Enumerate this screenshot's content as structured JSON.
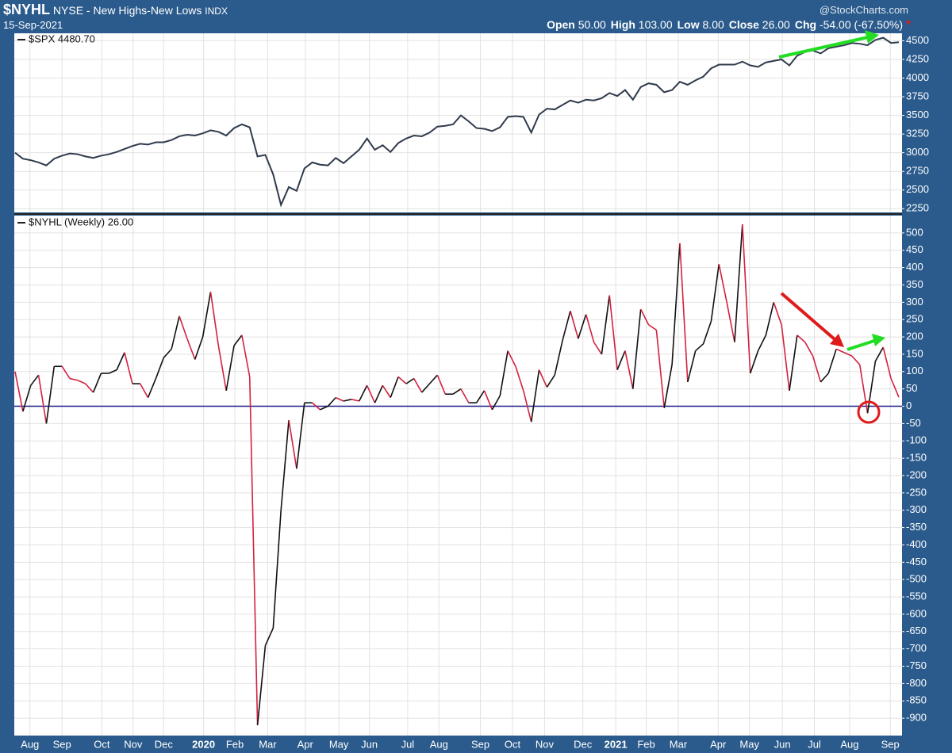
{
  "header": {
    "symbol": "$NYHL",
    "name": "NYSE - New Highs-New Lows",
    "exchange": "INDX",
    "date": "15-Sep-2021",
    "source": "@StockCharts.com",
    "quote": [
      {
        "label": "Open",
        "value": "50.00"
      },
      {
        "label": "High",
        "value": "103.00"
      },
      {
        "label": "Low",
        "value": "8.00"
      },
      {
        "label": "Close",
        "value": "26.00"
      },
      {
        "label": "Chg",
        "value": "-54.00 (-67.50%)"
      }
    ]
  },
  "chart_data": [
    {
      "type": "line",
      "xlim": [
        0,
        113
      ],
      "ylim": [
        2200,
        4600
      ],
      "yticks": [
        2250,
        2500,
        2750,
        3000,
        3250,
        3500,
        3750,
        4000,
        4250,
        4500
      ],
      "grid": true,
      "series": [
        {
          "name": "$SPX 4480.70",
          "color": "#2f3b4c",
          "values": [
            3000,
            2920,
            2900,
            2870,
            2830,
            2920,
            2960,
            2990,
            2980,
            2950,
            2930,
            2960,
            2980,
            3010,
            3050,
            3090,
            3120,
            3110,
            3140,
            3140,
            3170,
            3220,
            3240,
            3230,
            3260,
            3300,
            3280,
            3230,
            3330,
            3380,
            3340,
            2950,
            2970,
            2710,
            2300,
            2540,
            2490,
            2790,
            2870,
            2840,
            2830,
            2930,
            2860,
            2950,
            3040,
            3190,
            3040,
            3100,
            3010,
            3130,
            3190,
            3230,
            3220,
            3270,
            3350,
            3360,
            3380,
            3500,
            3420,
            3330,
            3320,
            3290,
            3340,
            3480,
            3490,
            3480,
            3270,
            3510,
            3590,
            3580,
            3640,
            3700,
            3670,
            3710,
            3700,
            3730,
            3800,
            3760,
            3840,
            3710,
            3880,
            3930,
            3910,
            3810,
            3840,
            3950,
            3910,
            3970,
            4020,
            4130,
            4180,
            4180,
            4180,
            4220,
            4170,
            4150,
            4210,
            4230,
            4250,
            4170,
            4300,
            4350,
            4370,
            4330,
            4400,
            4420,
            4440,
            4470,
            4460,
            4440,
            4510,
            4540,
            4470,
            4480.7
          ]
        }
      ]
    },
    {
      "type": "updown-line",
      "xlim": [
        0,
        113
      ],
      "ylim": [
        -950,
        550
      ],
      "yticks": [
        -900,
        -850,
        -800,
        -750,
        -700,
        -650,
        -600,
        -550,
        -500,
        -450,
        -400,
        -350,
        -300,
        -250,
        -200,
        -150,
        -100,
        -50,
        0,
        50,
        100,
        150,
        200,
        250,
        300,
        350,
        400,
        450,
        500
      ],
      "grid": true,
      "zero_line_color": "#1c1c8a",
      "xticks": [
        {
          "value": 1.9,
          "label": "Aug"
        },
        {
          "value": 6,
          "label": "Sep"
        },
        {
          "value": 11.1,
          "label": "Oct"
        },
        {
          "value": 15.1,
          "label": "Nov"
        },
        {
          "value": 19,
          "label": "Dec"
        },
        {
          "value": 24.1,
          "label": "2020"
        },
        {
          "value": 28.1,
          "label": "Feb"
        },
        {
          "value": 32.3,
          "label": "Mar"
        },
        {
          "value": 37.1,
          "label": "Apr"
        },
        {
          "value": 41.4,
          "label": "May"
        },
        {
          "value": 45.3,
          "label": "Jun"
        },
        {
          "value": 50.2,
          "label": "Jul"
        },
        {
          "value": 54.2,
          "label": "Aug"
        },
        {
          "value": 59.5,
          "label": "Sep"
        },
        {
          "value": 63.6,
          "label": "Oct"
        },
        {
          "value": 67.7,
          "label": "Nov"
        },
        {
          "value": 72.6,
          "label": "Dec"
        },
        {
          "value": 76.8,
          "label": "2021"
        },
        {
          "value": 80.7,
          "label": "Feb"
        },
        {
          "value": 84.8,
          "label": "Mar"
        },
        {
          "value": 89.9,
          "label": "Apr"
        },
        {
          "value": 93.9,
          "label": "May"
        },
        {
          "value": 98.1,
          "label": "Jun"
        },
        {
          "value": 102.2,
          "label": "Jul"
        },
        {
          "value": 106.7,
          "label": "Aug"
        },
        {
          "value": 111.9,
          "label": "Sep"
        }
      ],
      "series": [
        {
          "name": "$NYHL (Weekly) 26.00",
          "color": "#111111",
          "down_color": "#d4213d",
          "values": [
            100,
            -15,
            60,
            90,
            -50,
            115,
            115,
            80,
            75,
            65,
            40,
            95,
            95,
            105,
            155,
            65,
            65,
            25,
            80,
            140,
            165,
            260,
            195,
            135,
            200,
            330,
            175,
            45,
            175,
            205,
            85,
            -920,
            -690,
            -640,
            -300,
            -40,
            -180,
            10,
            10,
            -10,
            0,
            25,
            15,
            20,
            15,
            60,
            10,
            60,
            25,
            85,
            65,
            80,
            40,
            65,
            90,
            35,
            35,
            50,
            10,
            10,
            45,
            -10,
            30,
            160,
            115,
            45,
            -45,
            105,
            55,
            90,
            190,
            275,
            195,
            265,
            185,
            150,
            320,
            105,
            160,
            50,
            280,
            235,
            220,
            -5,
            120,
            470,
            70,
            160,
            180,
            245,
            410,
            300,
            185,
            525,
            95,
            160,
            205,
            300,
            235,
            45,
            205,
            185,
            145,
            70,
            95,
            165,
            155,
            145,
            120,
            -20,
            130,
            170,
            80,
            26
          ]
        }
      ]
    }
  ]
}
